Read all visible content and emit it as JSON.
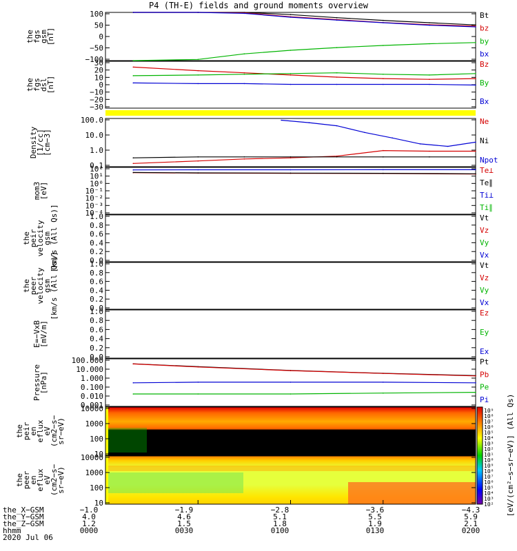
{
  "title": "P4 (TH-E) fields and ground moments overview",
  "panels": [
    {
      "id": "fgs_gsm",
      "ylabel": [
        "the",
        "fgs",
        "gsm",
        "[nT]"
      ],
      "ticks": [
        "100",
        "50",
        "0",
        "−50",
        "−100"
      ],
      "ymin": -100,
      "ymax": 100,
      "legend": [
        {
          "text": "Bt",
          "color": "#000000"
        },
        {
          "text": "bz",
          "color": "#d40000"
        },
        {
          "text": "by",
          "color": "#00b400"
        },
        {
          "text": "bx",
          "color": "#0000d4"
        }
      ]
    },
    {
      "id": "fgs_dsl",
      "ylabel": [
        "the",
        "fgs",
        "dsl",
        "[nT]"
      ],
      "ticks": [
        "30",
        "20",
        "10",
        "0",
        "−10",
        "−20",
        "−30"
      ],
      "ymin": -35,
      "ymax": 30,
      "legend": [
        {
          "text": "Bz",
          "color": "#d40000"
        },
        {
          "text": "By",
          "color": "#00b400"
        },
        {
          "text": "Bx",
          "color": "#0000d4"
        }
      ]
    },
    {
      "id": "density",
      "ylabel": [
        "Density",
        "[1/cc]",
        "[cm−3]"
      ],
      "ticks": [
        "100.0",
        "10.0",
        "1.0",
        "0.1"
      ],
      "log": true,
      "ymin": 0.07,
      "ymax": 200,
      "legend": [
        {
          "text": "Ne",
          "color": "#d40000"
        },
        {
          "text": "Ni",
          "color": "#000000"
        },
        {
          "text": "Npot",
          "color": "#0000d4"
        }
      ]
    },
    {
      "id": "temp",
      "ylabel": [
        "mom3",
        "[eV]"
      ],
      "ticks": [
        "10²",
        "10¹",
        "10⁰",
        "10⁻¹",
        "10⁻²",
        "10⁻³",
        "10⁻⁴"
      ],
      "log": true,
      "ymin": 5e-05,
      "ymax": 1000,
      "legend": [
        {
          "text": "Te⊥",
          "color": "#d40000"
        },
        {
          "text": "Te∥",
          "color": "#000000"
        },
        {
          "text": "Ti⊥",
          "color": "#0000d4"
        },
        {
          "text": "Ti∥",
          "color": "#00b400"
        }
      ]
    },
    {
      "id": "peir_v",
      "ylabel": [
        "the",
        "peir",
        "velocity",
        "gsm",
        "[km/s (All Qs)]"
      ],
      "ticks": [
        "1.0",
        "0.8",
        "0.6",
        "0.4",
        "0.2",
        "0.0"
      ],
      "ymin": 0,
      "ymax": 1,
      "legend": [
        {
          "text": "Vt",
          "color": "#000000"
        },
        {
          "text": "Vz",
          "color": "#d40000"
        },
        {
          "text": "Vy",
          "color": "#00b400"
        },
        {
          "text": "Vx",
          "color": "#0000d4"
        }
      ]
    },
    {
      "id": "peer_v",
      "ylabel": [
        "the",
        "peer",
        "velocity",
        "gsm",
        "[km/s (All Qs)]"
      ],
      "ticks": [
        "1.0",
        "0.8",
        "0.6",
        "0.4",
        "0.2",
        "0.0"
      ],
      "ymin": 0,
      "ymax": 1,
      "legend": [
        {
          "text": "Vt",
          "color": "#000000"
        },
        {
          "text": "Vz",
          "color": "#d40000"
        },
        {
          "text": "Vy",
          "color": "#00b400"
        },
        {
          "text": "Vx",
          "color": "#0000d4"
        }
      ]
    },
    {
      "id": "efield",
      "ylabel": [
        "E=−VxB",
        "[mV/m]"
      ],
      "ticks": [
        "1.0",
        "0.8",
        "0.6",
        "0.4",
        "0.2",
        "0.0"
      ],
      "ymin": 0,
      "ymax": 1,
      "legend": [
        {
          "text": "Ez",
          "color": "#d40000"
        },
        {
          "text": "Ey",
          "color": "#00b400"
        },
        {
          "text": "Ex",
          "color": "#0000d4"
        }
      ]
    },
    {
      "id": "pressure",
      "ylabel": [
        "Pressure",
        "[nPa]"
      ],
      "ticks": [
        "100.000",
        "10.000",
        "1.000",
        "0.100",
        "0.010",
        "0.001"
      ],
      "log": true,
      "ymin": 0.001,
      "ymax": 100,
      "legend": [
        {
          "text": "Pt",
          "color": "#000000"
        },
        {
          "text": "Pb",
          "color": "#d40000"
        },
        {
          "text": "Pe",
          "color": "#00b400"
        },
        {
          "text": "Pi",
          "color": "#0000d4"
        }
      ]
    },
    {
      "id": "peir_eflux",
      "ylabel": [
        "the",
        "peir",
        "en",
        "eflux",
        "eV",
        "(cm2−s−",
        "sr−eV)"
      ],
      "ticks": [
        "10000",
        "1000",
        "100",
        "10"
      ],
      "legend": []
    },
    {
      "id": "peer_eflux",
      "ylabel": [
        "the",
        "peer",
        "en",
        "eflux",
        "eV",
        "(cm2−s−",
        "sr−eV)"
      ],
      "ticks": [
        "10000",
        "1000",
        "100",
        "10"
      ],
      "legend": []
    }
  ],
  "colorbar": {
    "ticks": [
      "10⁹",
      "10⁸",
      "10⁷",
      "10⁶",
      "10⁵",
      "10⁴",
      "10³",
      "10²",
      "10¹",
      "10⁰",
      "10⁹",
      "10⁸",
      "10⁷",
      "10⁶",
      "10⁵",
      "10⁴",
      "10³",
      "10²"
    ],
    "label": "[eV/(cm²−s−sr−eV)] (All Qs)"
  },
  "footer": {
    "rows": [
      "the_X−GSM",
      "the_Y−GSM",
      "the_Z−GSM",
      "hhmm",
      "2020 Jul 06"
    ],
    "columns": [
      {
        "x": "−1.0",
        "y": "4.0",
        "z": "1.2",
        "t": "0000"
      },
      {
        "x": "−1.9",
        "y": "4.6",
        "z": "1.5",
        "t": "0030"
      },
      {
        "x": "−2.8",
        "y": "5.1",
        "z": "1.8",
        "t": "0100"
      },
      {
        "x": "−3.6",
        "y": "5.5",
        "z": "1.9",
        "t": "0130"
      },
      {
        "x": "−4.3",
        "y": "5.9",
        "z": "2.1",
        "t": "0200"
      }
    ]
  },
  "chart_data": {
    "type": "line",
    "title": "P4 (TH-E) fields and ground moments overview",
    "x_label": "hhmm",
    "x_ticks": [
      "0000",
      "0030",
      "0100",
      "0130",
      "0200"
    ],
    "date": "2020 Jul 06",
    "series": [
      {
        "panel": "fgs_gsm",
        "name": "Bt",
        "color": "#000000",
        "x": [
          0.15,
          0.5,
          0.75,
          1.0,
          1.25,
          1.5,
          1.75,
          2.0
        ],
        "values": [
          145,
          122,
          105,
          91,
          78,
          67,
          57,
          48
        ]
      },
      {
        "panel": "fgs_gsm",
        "name": "bz",
        "color": "#d40000",
        "x": [
          0.15,
          0.5,
          0.75,
          1.0,
          1.25,
          1.5,
          1.75,
          2.0
        ],
        "values": [
          135,
          115,
          98,
          82,
          70,
          58,
          49,
          43
        ]
      },
      {
        "panel": "fgs_gsm",
        "name": "by",
        "color": "#00b400",
        "x": [
          0.15,
          0.5,
          0.75,
          1.0,
          1.25,
          1.5,
          1.75,
          2.0
        ],
        "values": [
          -135,
          -95,
          -72,
          -57,
          -46,
          -37,
          -30,
          -25
        ]
      },
      {
        "panel": "fgs_gsm",
        "name": "bx",
        "color": "#0000d4",
        "x": [
          0.15,
          0.5,
          0.75,
          1.0,
          1.25,
          1.5,
          1.75,
          2.0
        ],
        "values": [
          135,
          112,
          96,
          80,
          68,
          57,
          47,
          40
        ]
      },
      {
        "panel": "fgs_dsl",
        "name": "Bz",
        "color": "#d40000",
        "x": [
          0.15,
          0.5,
          0.75,
          1.0,
          1.25,
          1.5,
          1.75,
          2.0
        ],
        "values": [
          22,
          17,
          14,
          11,
          8,
          6,
          5,
          6
        ]
      },
      {
        "panel": "fgs_dsl",
        "name": "By",
        "color": "#00b400",
        "x": [
          0.15,
          0.5,
          0.75,
          1.0,
          1.25,
          1.5,
          1.75,
          2.0
        ],
        "values": [
          10,
          11,
          12,
          13,
          14,
          12,
          11,
          13
        ]
      },
      {
        "panel": "fgs_dsl",
        "name": "Bx",
        "color": "#0000d4",
        "x": [
          0.15,
          0.5,
          0.75,
          1.0,
          1.25,
          1.5,
          1.75,
          2.0
        ],
        "values": [
          0,
          -1,
          -1,
          -2,
          -2,
          -2,
          -2,
          -3
        ]
      },
      {
        "panel": "density",
        "name": "Ne",
        "color": "#d40000",
        "x": [
          0.15,
          0.5,
          0.75,
          1.0,
          1.25,
          1.5,
          1.75,
          2.0
        ],
        "values": [
          0.12,
          0.18,
          0.25,
          0.3,
          0.4,
          1.0,
          0.9,
          0.9
        ]
      },
      {
        "panel": "density",
        "name": "Ni",
        "color": "#000000",
        "x": [
          0.15,
          0.5,
          0.75,
          1.0,
          1.25,
          1.5,
          1.75,
          2.0
        ],
        "values": [
          0.3,
          0.35,
          0.35,
          0.35,
          0.35,
          0.35,
          0.35,
          0.35
        ]
      },
      {
        "panel": "density",
        "name": "Npot",
        "color": "#0000d4",
        "x": [
          0.95,
          1.1,
          1.25,
          1.4,
          1.55,
          1.7,
          1.85,
          2.0
        ],
        "values": [
          150,
          100,
          60,
          20,
          8,
          3,
          2,
          4
        ]
      },
      {
        "panel": "temp",
        "name": "Te⊥",
        "color": "#d40000",
        "x": [
          0.15,
          0.5,
          1.0,
          1.5,
          2.0
        ],
        "values": [
          150,
          130,
          120,
          110,
          90
        ]
      },
      {
        "panel": "temp",
        "name": "Te∥",
        "color": "#000000",
        "x": [
          0.15,
          0.5,
          1.0,
          1.5,
          2.0
        ],
        "values": [
          160,
          140,
          130,
          120,
          100
        ]
      },
      {
        "panel": "temp",
        "name": "Ti⊥",
        "color": "#0000d4",
        "x": [
          0.15,
          0.5,
          1.0,
          1.5,
          2.0
        ],
        "values": [
          400,
          420,
          420,
          430,
          430
        ]
      },
      {
        "panel": "pressure",
        "name": "Pt",
        "color": "#000000",
        "x": [
          0.15,
          0.5,
          1.0,
          1.5,
          2.0
        ],
        "values": [
          30,
          15,
          6,
          3,
          1.7
        ]
      },
      {
        "panel": "pressure",
        "name": "Pb",
        "color": "#d40000",
        "x": [
          0.15,
          0.5,
          1.0,
          1.5,
          2.0
        ],
        "values": [
          29,
          14,
          5.8,
          2.9,
          1.6
        ]
      },
      {
        "panel": "pressure",
        "name": "Pe",
        "color": "#00b400",
        "x": [
          0.15,
          0.5,
          1.0,
          1.5,
          2.0
        ],
        "values": [
          0.02,
          0.02,
          0.02,
          0.025,
          0.03
        ]
      },
      {
        "panel": "pressure",
        "name": "Pi",
        "color": "#0000d4",
        "x": [
          0.15,
          0.5,
          1.0,
          1.5,
          2.0
        ],
        "values": [
          0.3,
          0.35,
          0.35,
          0.35,
          0.3
        ]
      }
    ]
  }
}
